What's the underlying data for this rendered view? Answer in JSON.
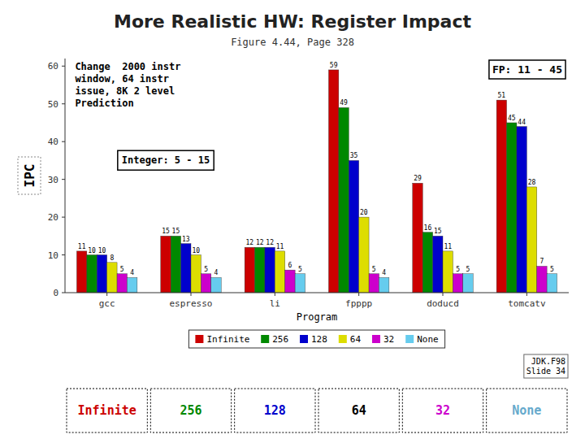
{
  "chart_data": {
    "type": "bar",
    "title": "More Realistic HW: Register Impact",
    "subtitle": "Figure 4.44, Page 328",
    "xlabel": "Program",
    "ylabel": "IPC",
    "categories": [
      "gcc",
      "espresso",
      "li",
      "fpppp",
      "doducd",
      "tomcatv"
    ],
    "series": [
      {
        "name": "Infinite",
        "color": "#cc0000",
        "values": [
          11,
          15,
          12,
          59,
          29,
          51
        ]
      },
      {
        "name": "256",
        "color": "#008800",
        "values": [
          10,
          15,
          12,
          49,
          16,
          45
        ]
      },
      {
        "name": "128",
        "color": "#0000cc",
        "values": [
          10,
          13,
          12,
          35,
          15,
          44
        ]
      },
      {
        "name": "64",
        "color": "#dddd00",
        "values": [
          8,
          10,
          11,
          20,
          11,
          28
        ]
      },
      {
        "name": "32",
        "color": "#cc00cc",
        "values": [
          5,
          5,
          6,
          5,
          5,
          7
        ]
      },
      {
        "name": "None",
        "color": "#66ccee",
        "values": [
          4,
          4,
          5,
          4,
          5,
          5
        ]
      }
    ],
    "ylim": [
      0,
      62
    ],
    "yticks": [
      0,
      10,
      20,
      30,
      40,
      50,
      60
    ],
    "grid": false,
    "legend": "bottom",
    "data_labels": true,
    "annotations": [
      {
        "text": "FP: 11 - 45"
      },
      {
        "text": "Integer: 5 - 15"
      },
      {
        "text": "Change  2000 instr\nwindow, 64 instr\nissue, 8K 2 level\nPrediction"
      },
      {
        "text": "JDK.F98\nSlide 34"
      },
      {
        "text": "Infinite",
        "color": "#cc0000"
      },
      {
        "text": "256",
        "color": "#008800"
      },
      {
        "text": "128",
        "color": "#0000cc"
      },
      {
        "text": "64",
        "color": "#000000"
      },
      {
        "text": "32",
        "color": "#cc00cc"
      },
      {
        "text": "None",
        "color": "#66aacc"
      }
    ]
  }
}
